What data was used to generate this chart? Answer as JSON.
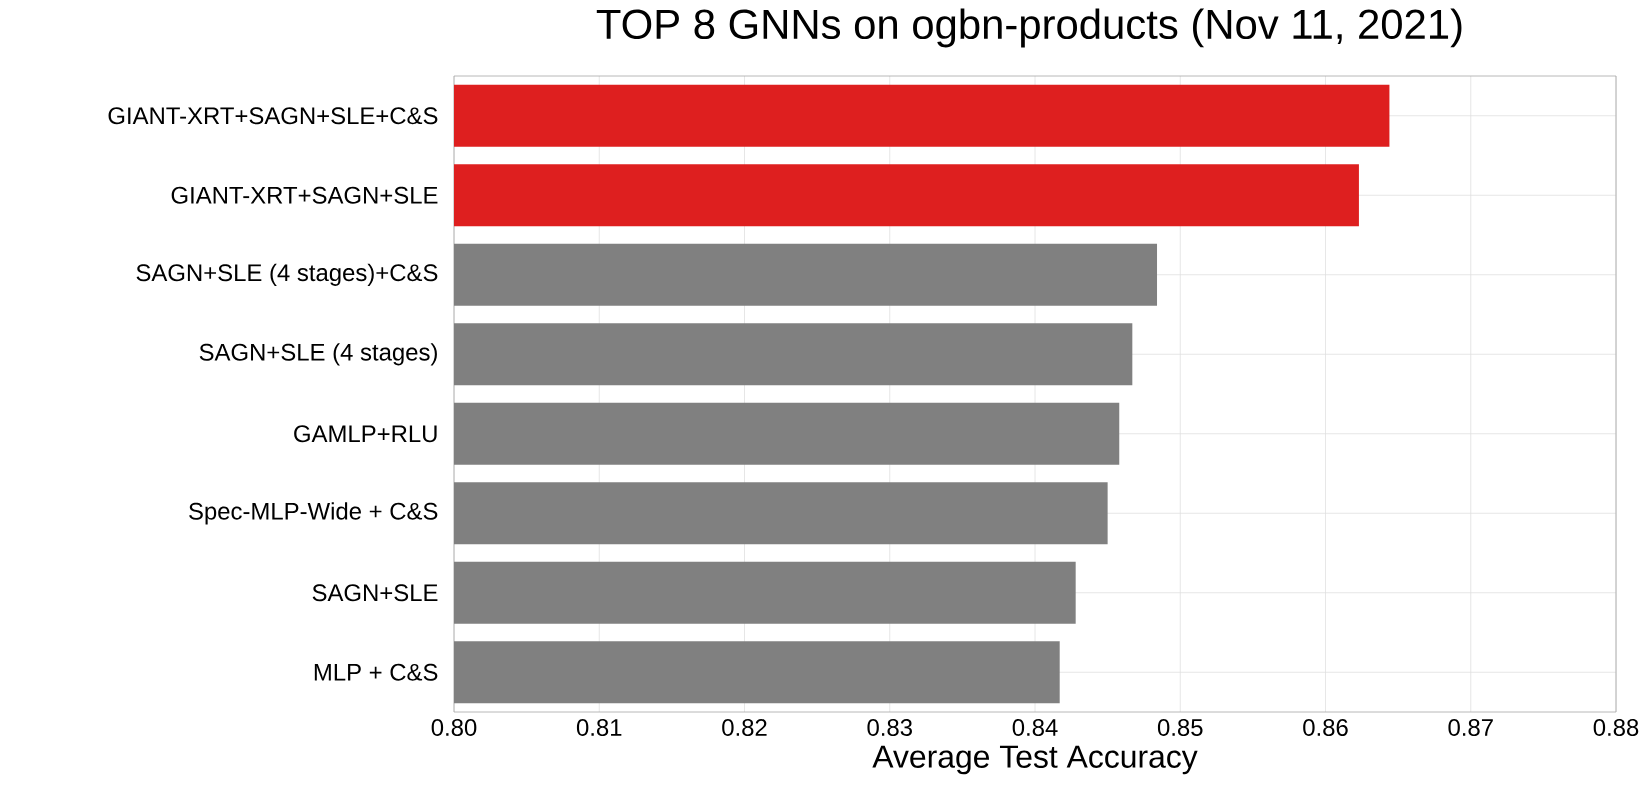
{
  "chart_data": {
    "type": "bar",
    "orientation": "horizontal",
    "title": "TOP 8 GNNs on ogbn-products (Nov 11, 2021)",
    "xlabel": "Average Test Accuracy",
    "categories": [
      "GIANT-XRT+SAGN+SLE+C&S",
      "GIANT-XRT+SAGN+SLE",
      "SAGN+SLE (4 stages)+C&S",
      "SAGN+SLE (4 stages)",
      "GAMLP+RLU",
      "Spec-MLP-Wide + C&S",
      "SAGN+SLE",
      "MLP + C&S"
    ],
    "values": [
      0.8644,
      0.8623,
      0.8484,
      0.8467,
      0.8458,
      0.845,
      0.8428,
      0.8417
    ],
    "colors": [
      "#de1f1f",
      "#de1f1f",
      "#808080",
      "#808080",
      "#808080",
      "#808080",
      "#808080",
      "#808080"
    ],
    "xlim": [
      0.8,
      0.88
    ],
    "xticks": [
      {
        "value": 0.8,
        "label": "0.80"
      },
      0.81,
      0.82,
      0.83,
      0.84,
      0.85,
      0.86,
      0.87,
      0.88
    ],
    "grid": true
  }
}
